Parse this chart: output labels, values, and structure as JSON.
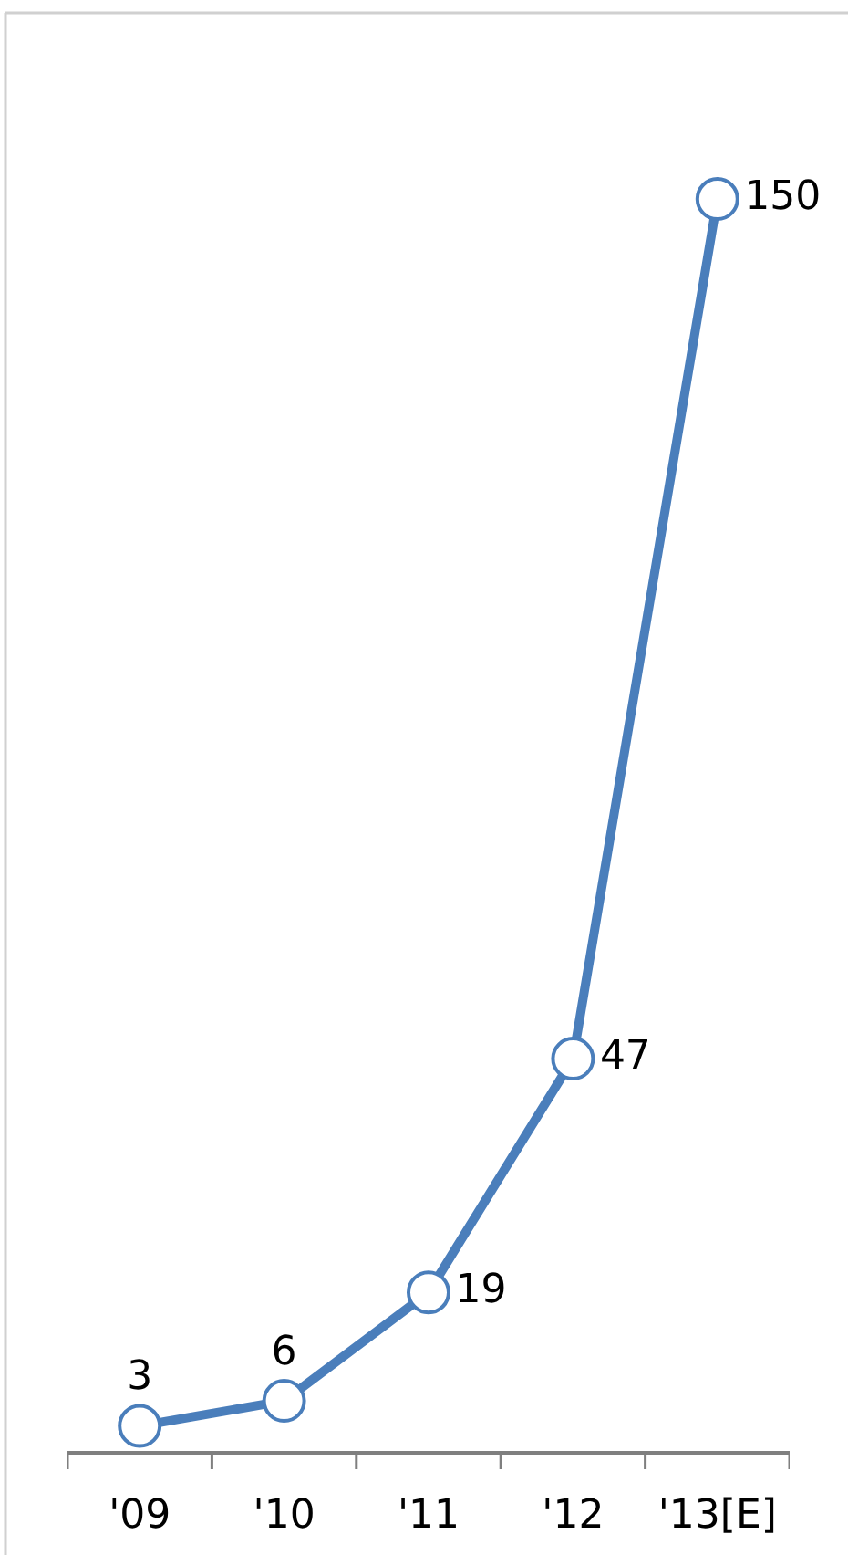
{
  "chart_data": {
    "type": "line",
    "categories": [
      "'09",
      "'10",
      "'11",
      "'12",
      "'13[E]"
    ],
    "values": [
      3,
      6,
      19,
      47,
      150
    ],
    "color": "#4a7ebb",
    "marker": "circle",
    "line_style": "solid",
    "data_labels": true,
    "tick_labels": "x"
  }
}
